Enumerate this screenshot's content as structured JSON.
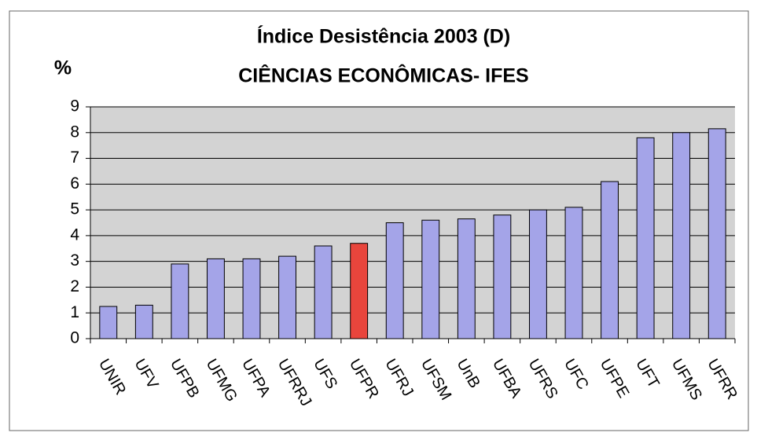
{
  "chart_data": {
    "type": "bar",
    "title": "Índice Desistência 2003 (D)",
    "subtitle": "CIÊNCIAS ECONÔMICAS- IFES",
    "y_label": "%",
    "categories": [
      "UNIR",
      "UFV",
      "UFPB",
      "UFMG",
      "UFPA",
      "UFRRJ",
      "UFS",
      "UFPR",
      "UFRJ",
      "UFSM",
      "UnB",
      "UFBA",
      "UFRS",
      "UFC",
      "UFPE",
      "UFT",
      "UFMS",
      "UFRR"
    ],
    "values": [
      1.25,
      1.3,
      2.9,
      3.1,
      3.1,
      3.2,
      3.6,
      3.7,
      4.5,
      4.6,
      4.65,
      4.8,
      5.0,
      5.1,
      6.1,
      7.8,
      8.0,
      8.15
    ],
    "colors": [
      "#a4a4e8",
      "#a4a4e8",
      "#a4a4e8",
      "#a4a4e8",
      "#a4a4e8",
      "#a4a4e8",
      "#a4a4e8",
      "#e8453c",
      "#a4a4e8",
      "#a4a4e8",
      "#a4a4e8",
      "#a4a4e8",
      "#a4a4e8",
      "#a4a4e8",
      "#a4a4e8",
      "#a4a4e8",
      "#a4a4e8",
      "#a4a4e8"
    ],
    "ylim": [
      0,
      9
    ],
    "yticks": [
      0,
      1,
      2,
      3,
      4,
      5,
      6,
      7,
      8,
      9
    ],
    "grid": true
  }
}
